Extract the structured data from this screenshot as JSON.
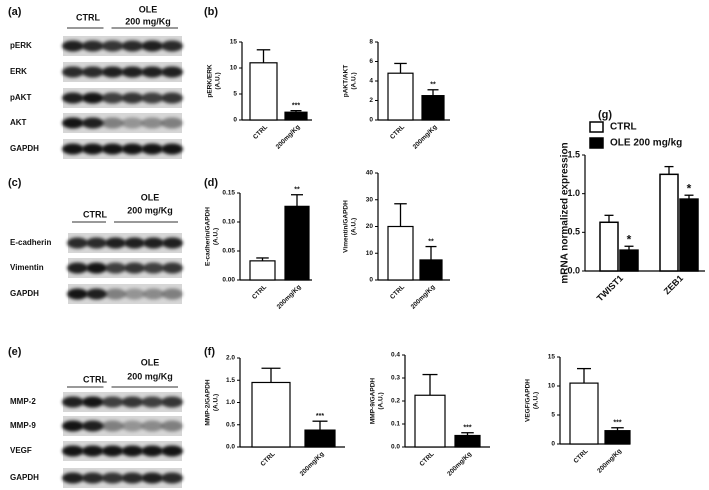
{
  "blots": [
    {
      "label": "(a)",
      "ctrl": "CTRL",
      "ole": [
        "OLE",
        "200 mg/Kg"
      ],
      "rows": [
        "pERK",
        "ERK",
        "pAKT",
        "AKT",
        "GAPDH"
      ]
    },
    {
      "label": "(c)",
      "ctrl": "CTRL",
      "ole": [
        "OLE",
        "200 mg/Kg"
      ],
      "rows": [
        "E-cadherin",
        "Vimentin",
        "GAPDH"
      ]
    },
    {
      "label": "(e)",
      "ctrl": "CTRL",
      "ole": [
        "OLE",
        "200 mg/Kg"
      ],
      "rows": [
        "MMP-2",
        "MMP-9",
        "VEGF",
        "GAPDH"
      ]
    }
  ],
  "chart_panel_labels": [
    "(b)",
    "(d)",
    "(f)",
    "(g)"
  ],
  "chart_data": [
    {
      "type": "bar",
      "ylabel": [
        "pERK/ERK",
        "(A.U.)"
      ],
      "categories": [
        "CTRL",
        "200mg/Kg"
      ],
      "values": [
        11,
        1.5
      ],
      "errors": [
        2.5,
        0.3
      ],
      "colors": [
        "#ffffff",
        "#000000"
      ],
      "annotation": "***",
      "ylim": [
        0,
        15
      ],
      "yticks": [
        0,
        5,
        10,
        15
      ]
    },
    {
      "type": "bar",
      "ylabel": [
        "pAKT/AKT",
        "(A.U.)"
      ],
      "categories": [
        "CTRL",
        "200mg/Kg"
      ],
      "values": [
        4.8,
        2.5
      ],
      "errors": [
        1.0,
        0.6
      ],
      "colors": [
        "#ffffff",
        "#000000"
      ],
      "annotation": "**",
      "ylim": [
        0,
        8
      ],
      "yticks": [
        0,
        2,
        4,
        6,
        8
      ]
    },
    {
      "type": "bar",
      "ylabel": [
        "E-cadherin/GAPDH",
        "(A.U.)"
      ],
      "categories": [
        "CTRL",
        "200mg/Kg"
      ],
      "values": [
        0.033,
        0.127
      ],
      "errors": [
        0.005,
        0.02
      ],
      "colors": [
        "#ffffff",
        "#000000"
      ],
      "annotation": "**",
      "ylim": [
        0,
        0.15
      ],
      "yticks": [
        {
          "value": 0,
          "label": "0.00"
        },
        {
          "value": 0.05,
          "label": "0.05"
        },
        {
          "value": 0.1,
          "label": "0.10"
        },
        {
          "value": 0.15,
          "label": "0.15"
        }
      ]
    },
    {
      "type": "bar",
      "ylabel": [
        "Vimentin/GAPDH",
        "(A.U.)"
      ],
      "categories": [
        "CTRL",
        "200mg/Kg"
      ],
      "values": [
        20,
        7.5
      ],
      "errors": [
        8.5,
        5
      ],
      "colors": [
        "#ffffff",
        "#000000"
      ],
      "annotation": "**",
      "ylim": [
        0,
        40
      ],
      "yticks": [
        0,
        10,
        20,
        30,
        40
      ]
    },
    {
      "type": "bar",
      "ylabel": [
        "MMP-2/GAPDH",
        "(A.U.)"
      ],
      "categories": [
        "CTRL",
        "200mg/Kg"
      ],
      "values": [
        1.45,
        0.38
      ],
      "errors": [
        0.32,
        0.2
      ],
      "colors": [
        "#ffffff",
        "#000000"
      ],
      "annotation": "***",
      "ylim": [
        0,
        2
      ],
      "yticks": [
        {
          "value": 0,
          "label": "0.0"
        },
        0.5,
        {
          "value": 1,
          "label": "1.0"
        },
        1.5,
        {
          "value": 2,
          "label": "2.0"
        }
      ]
    },
    {
      "type": "bar",
      "ylabel": [
        "MMP-9/GAPDH",
        "(A.U.)"
      ],
      "categories": [
        "CTRL",
        "200mg/Kg"
      ],
      "values": [
        0.225,
        0.05
      ],
      "errors": [
        0.09,
        0.012
      ],
      "colors": [
        "#ffffff",
        "#000000"
      ],
      "annotation": "***",
      "ylim": [
        0,
        0.4
      ],
      "yticks": [
        {
          "value": 0,
          "label": "0.0"
        },
        0.1,
        0.2,
        0.3,
        0.4
      ]
    },
    {
      "type": "bar",
      "ylabel": [
        "VEGF/GAPDH",
        "(A.U.)"
      ],
      "categories": [
        "CTRL",
        "200mg/Kg"
      ],
      "values": [
        10.5,
        2.3
      ],
      "errors": [
        2.5,
        0.5
      ],
      "colors": [
        "#ffffff",
        "#000000"
      ],
      "annotation": "***",
      "ylim": [
        0,
        15
      ],
      "yticks": [
        0,
        5,
        10,
        15
      ]
    },
    {
      "type": "grouped_bar",
      "ylabel": [
        "mRNA normalized expression"
      ],
      "categories": [
        "TWIST1",
        "ZEB1"
      ],
      "series": [
        {
          "name": "CTRL",
          "color": "#ffffff",
          "values": [
            0.63,
            1.25
          ],
          "errors": [
            0.09,
            0.1
          ]
        },
        {
          "name": "OLE 200 mg/kg",
          "color": "#000000",
          "values": [
            0.27,
            0.93
          ],
          "errors": [
            0.05,
            0.05
          ],
          "annotations": [
            "*",
            "*"
          ]
        }
      ],
      "ylim": [
        0,
        1.5
      ],
      "yticks": [
        {
          "value": 0,
          "label": "0.0"
        },
        0.5,
        {
          "value": 1,
          "label": "1.0"
        },
        1.5
      ]
    }
  ]
}
